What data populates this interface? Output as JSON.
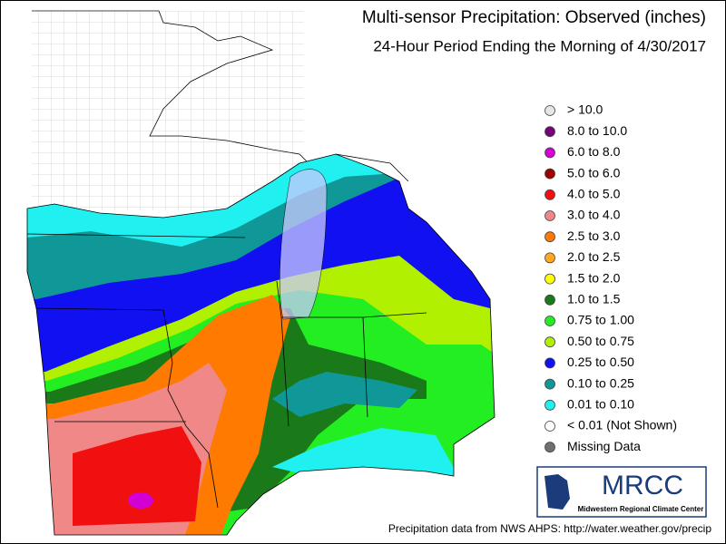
{
  "header": {
    "title": "Multi-sensor Precipitation:  Observed (inches)",
    "subtitle": "24-Hour Period Ending the Morning of 4/30/2017"
  },
  "legend": {
    "items": [
      {
        "label": "> 10.0",
        "color": "#e6e6e6"
      },
      {
        "label": "8.0 to 10.0",
        "color": "#7a007a"
      },
      {
        "label": "6.0 to 8.0",
        "color": "#d200d2"
      },
      {
        "label": "5.0 to 6.0",
        "color": "#a00000"
      },
      {
        "label": "4.0 to 5.0",
        "color": "#f01010"
      },
      {
        "label": "3.0 to 4.0",
        "color": "#f08888"
      },
      {
        "label": "2.5 to 3.0",
        "color": "#ff7a00"
      },
      {
        "label": "2.0 to 2.5",
        "color": "#ffa820"
      },
      {
        "label": "1.5 to 2.0",
        "color": "#ffff00"
      },
      {
        "label": "1.0 to 1.5",
        "color": "#1a7a1a"
      },
      {
        "label": "0.75 to 1.00",
        "color": "#22ee22"
      },
      {
        "label": "0.50 to 0.75",
        "color": "#b0f000"
      },
      {
        "label": "0.25 to 0.50",
        "color": "#1010f0"
      },
      {
        "label": "0.10 to 0.25",
        "color": "#109898"
      },
      {
        "label": "0.01 to 0.10",
        "color": "#20f0f0"
      },
      {
        "label": "< 0.01 (Not Shown)",
        "color": "#ffffff"
      },
      {
        "label": "Missing Data",
        "color": "#707070"
      }
    ]
  },
  "logo": {
    "name": "MRCC",
    "full_name": "Midwestern Regional Climate Center"
  },
  "footer": "Precipitation data from NWS AHPS: http://water.weather.gov/precip"
}
